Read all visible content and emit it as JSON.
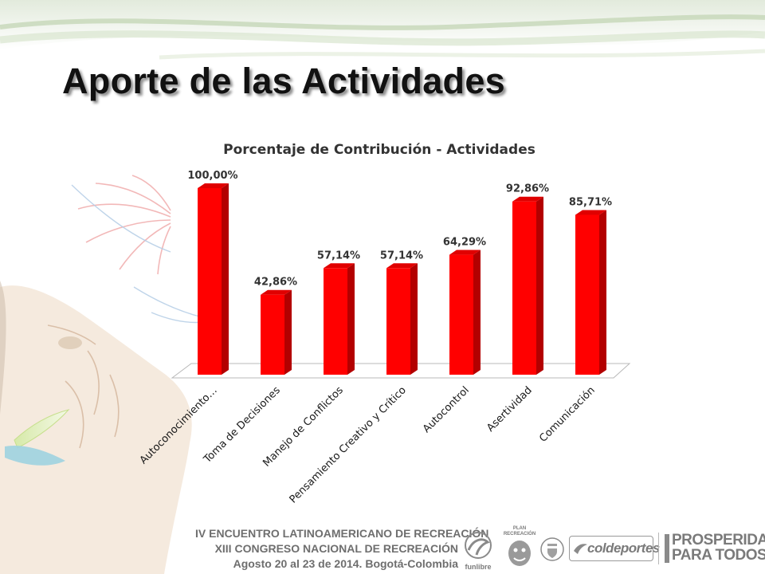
{
  "slide": {
    "title": "Aporte de las Actividades"
  },
  "chart_data": {
    "type": "bar",
    "title": "Porcentaje de Contribución - Actividades",
    "categories": [
      "Autoconocimiento…",
      "Toma de Decisiones",
      "Manejo de Conflictos",
      "Pensamiento Creativo y Crítico",
      "Autocontrol",
      "Asertividad",
      "Comunicación"
    ],
    "values": [
      100.0,
      42.86,
      57.14,
      57.14,
      64.29,
      92.86,
      85.71
    ],
    "value_labels": [
      "100,00%",
      "42,86%",
      "57,14%",
      "57,14%",
      "64,29%",
      "92,86%",
      "85,71%"
    ],
    "xlabel": "",
    "ylabel": "",
    "ylim": [
      0,
      100
    ],
    "grid": false,
    "legend": "none",
    "bar_color": "#ff0000",
    "bar_side_color": "#b30000"
  },
  "footer": {
    "line1": "IV ENCUENTRO LATINOAMERICANO DE RECREACIÓN",
    "line2": "XIII CONGRESO NACIONAL DE RECREACIÓN",
    "line3": "Agosto 20 al 23 de 2014.  Bogotá-Colombia"
  },
  "logos": {
    "funlibre": "funlibre",
    "plan_recreacion": "PLAN RECREACIÓN",
    "coldeportes": "coldeportes",
    "prosperidad_line1": "PROSPERIDAD",
    "prosperidad_line2": "PARA TODOS"
  }
}
